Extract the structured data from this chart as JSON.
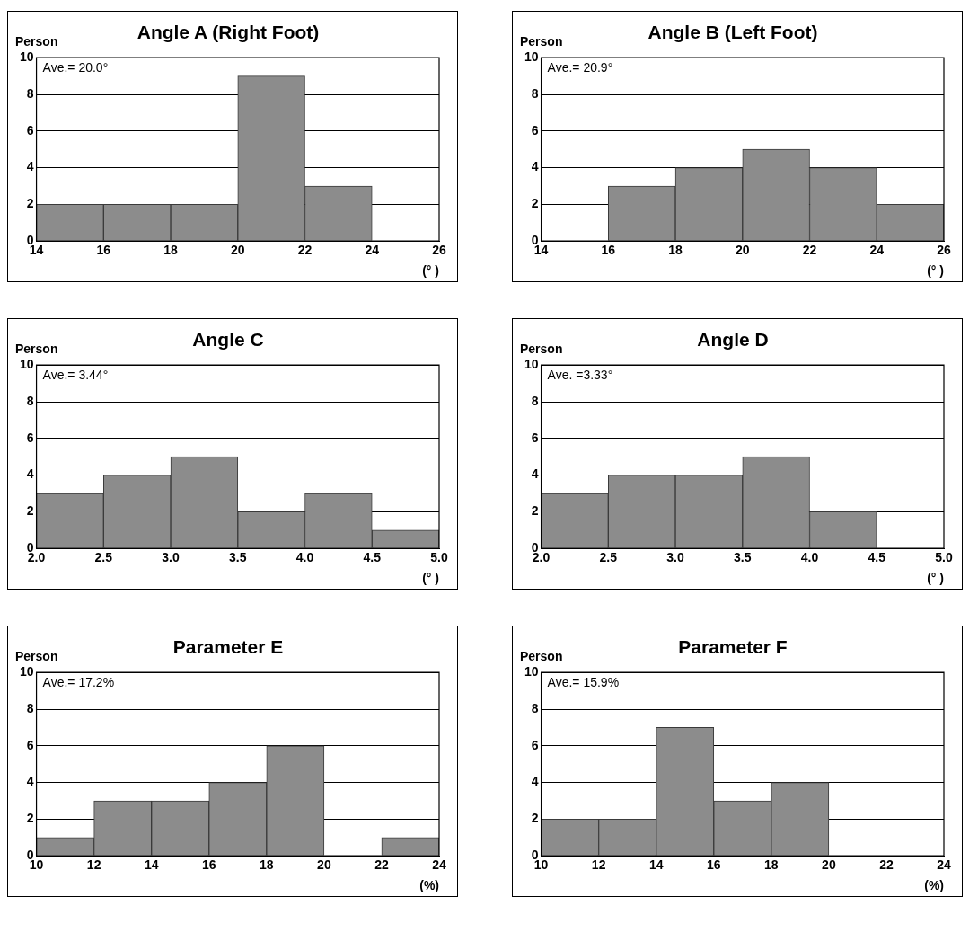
{
  "chart_data": [
    {
      "type": "histogram",
      "title": "Angle A (Right Foot)",
      "ylabel": "Person",
      "xlabel": "(° )",
      "bins": [
        14,
        16,
        18,
        20,
        22,
        24,
        26
      ],
      "values": [
        2,
        2,
        2,
        9,
        3,
        0
      ],
      "color": "#8c8c8c",
      "xlim": [
        14,
        26
      ],
      "xticks": [
        14,
        16,
        18,
        20,
        22,
        24,
        26
      ],
      "ylim": [
        0,
        10
      ],
      "yticks": [
        0,
        2,
        4,
        6,
        8,
        10
      ],
      "grid": "y",
      "legend": false,
      "annotations": [
        "Ave.= 20.0°"
      ]
    },
    {
      "type": "histogram",
      "title": "Angle B (Left Foot)",
      "ylabel": "Person",
      "xlabel": "(° )",
      "bins": [
        14,
        16,
        18,
        20,
        22,
        24,
        26
      ],
      "values": [
        0,
        3,
        4,
        5,
        4,
        2
      ],
      "color": "#8c8c8c",
      "xlim": [
        14,
        26
      ],
      "xticks": [
        14,
        16,
        18,
        20,
        22,
        24,
        26
      ],
      "ylim": [
        0,
        10
      ],
      "yticks": [
        0,
        2,
        4,
        6,
        8,
        10
      ],
      "grid": "y",
      "legend": false,
      "annotations": [
        "Ave.= 20.9°"
      ]
    },
    {
      "type": "histogram",
      "title": "Angle C",
      "ylabel": "Person",
      "xlabel": "(° )",
      "bins": [
        2.0,
        2.5,
        3.0,
        3.5,
        4.0,
        4.5,
        5.0
      ],
      "values": [
        3,
        4,
        5,
        2,
        3,
        1
      ],
      "color": "#8c8c8c",
      "xlim": [
        2.0,
        5.0
      ],
      "xticks": [
        {
          "value": 2,
          "label": "2.0"
        },
        2.5,
        {
          "value": 3,
          "label": "3.0"
        },
        3.5,
        {
          "value": 4,
          "label": "4.0"
        },
        4.5,
        {
          "value": 5,
          "label": "5.0"
        }
      ],
      "ylim": [
        0,
        10
      ],
      "yticks": [
        0,
        2,
        4,
        6,
        8,
        10
      ],
      "grid": "y",
      "legend": false,
      "annotations": [
        "Ave.= 3.44°"
      ]
    },
    {
      "type": "histogram",
      "title": "Angle D",
      "ylabel": "Person",
      "xlabel": "(° )",
      "bins": [
        2.0,
        2.5,
        3.0,
        3.5,
        4.0,
        4.5,
        5.0
      ],
      "values": [
        3,
        4,
        4,
        5,
        2,
        0
      ],
      "color": "#8c8c8c",
      "xlim": [
        2.0,
        5.0
      ],
      "xticks": [
        {
          "value": 2,
          "label": "2.0"
        },
        2.5,
        {
          "value": 3,
          "label": "3.0"
        },
        3.5,
        {
          "value": 4,
          "label": "4.0"
        },
        4.5,
        {
          "value": 5,
          "label": "5.0"
        }
      ],
      "ylim": [
        0,
        10
      ],
      "yticks": [
        0,
        2,
        4,
        6,
        8,
        10
      ],
      "grid": "y",
      "legend": false,
      "annotations": [
        "Ave. =3.33°"
      ]
    },
    {
      "type": "histogram",
      "title": "Parameter E",
      "ylabel": "Person",
      "xlabel": "(%)",
      "bins": [
        10,
        12,
        14,
        16,
        18,
        20,
        22,
        24
      ],
      "values": [
        1,
        3,
        3,
        4,
        6,
        0,
        1
      ],
      "color": "#8c8c8c",
      "xlim": [
        10,
        24
      ],
      "xticks": [
        10,
        12,
        14,
        16,
        18,
        20,
        22,
        24
      ],
      "ylim": [
        0,
        10
      ],
      "yticks": [
        0,
        2,
        4,
        6,
        8,
        10
      ],
      "grid": "y",
      "legend": false,
      "annotations": [
        "Ave.= 17.2%"
      ]
    },
    {
      "type": "histogram",
      "title": "Parameter F",
      "ylabel": "Person",
      "xlabel": "(%)",
      "bins": [
        10,
        12,
        14,
        16,
        18,
        20,
        22,
        24
      ],
      "values": [
        2,
        2,
        7,
        3,
        4,
        0,
        0
      ],
      "color": "#8c8c8c",
      "xlim": [
        10,
        24
      ],
      "xticks": [
        10,
        12,
        14,
        16,
        18,
        20,
        22,
        24
      ],
      "ylim": [
        0,
        10
      ],
      "yticks": [
        0,
        2,
        4,
        6,
        8,
        10
      ],
      "grid": "y",
      "legend": false,
      "annotations": [
        "Ave.= 15.9%"
      ]
    }
  ]
}
